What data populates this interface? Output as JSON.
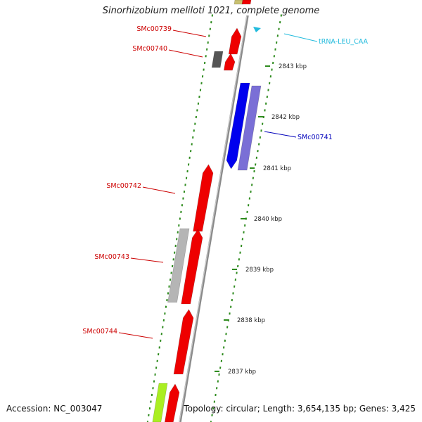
{
  "title": "Sinorhizobium meliloti 1021, complete genome",
  "footer": {
    "accession": "Accession: NC_003047",
    "topology": "Topology: circular; Length: 3,654,135 bp; Genes: 3,425"
  },
  "colors": {
    "backbone": "#8a8a8a",
    "tick": "#2e8b1e",
    "gene_red": "#ee0000",
    "gene_blue": "#0000ee",
    "gene_lavender": "#7a6fd6",
    "gene_gray": "#b5b5b5",
    "gene_darkgray": "#555555",
    "gene_olive": "#c8c070",
    "gene_lime": "#aaee22",
    "trna": "#22bbdd",
    "label_red": "#cc0000",
    "label_blue": "#0000bb",
    "label_cyan": "#22bbdd"
  },
  "kbp_labels": [
    {
      "text": "2843 kbp"
    },
    {
      "text": "2842 kbp"
    },
    {
      "text": "2841 kbp"
    },
    {
      "text": "2840 kbp"
    },
    {
      "text": "2839 kbp"
    },
    {
      "text": "2838 kbp"
    },
    {
      "text": "2837 kbp"
    }
  ],
  "gene_labels": [
    {
      "text": "SMc00739",
      "color": "label_red"
    },
    {
      "text": "SMc00740",
      "color": "label_red"
    },
    {
      "text": "tRNA-LEU_CAA",
      "color": "label_cyan"
    },
    {
      "text": "SMc00741",
      "color": "label_blue"
    },
    {
      "text": "SMc00742",
      "color": "label_red"
    },
    {
      "text": "SMc00743",
      "color": "label_red"
    },
    {
      "text": "SMc00744",
      "color": "label_red"
    }
  ]
}
